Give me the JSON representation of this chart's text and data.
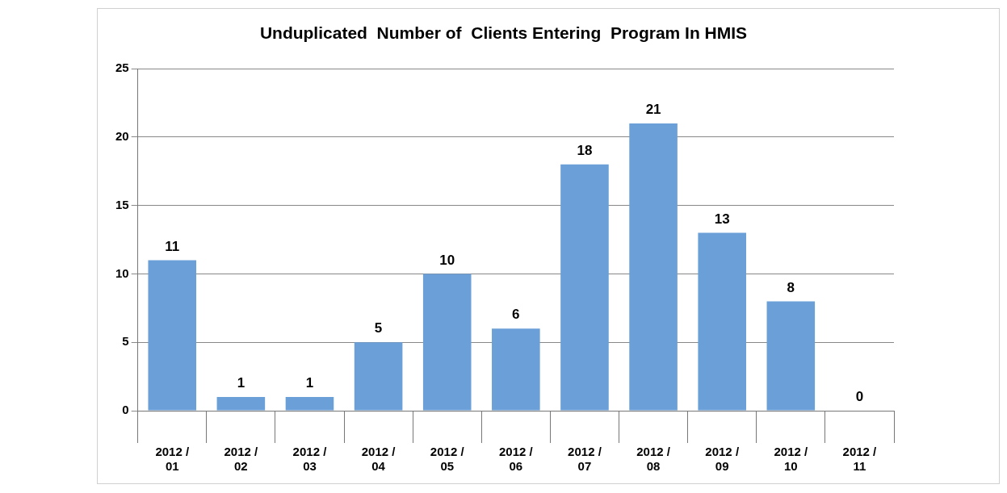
{
  "chart_data": {
    "type": "bar",
    "title": "Unduplicated  Number of  Clients Entering  Program In HMIS",
    "categories": [
      "2012 / 01",
      "2012 / 02",
      "2012 / 03",
      "2012 / 04",
      "2012 / 05",
      "2012 / 06",
      "2012 / 07",
      "2012 / 08",
      "2012 / 09",
      "2012 / 10",
      "2012 / 11"
    ],
    "values": [
      11,
      1,
      1,
      5,
      10,
      6,
      18,
      21,
      13,
      8,
      0
    ],
    "color": "#6a9fd8",
    "ylim": [
      0,
      25
    ],
    "yticks": [
      0,
      5,
      10,
      15,
      20,
      25
    ],
    "grid": "y",
    "data_labels": true
  }
}
